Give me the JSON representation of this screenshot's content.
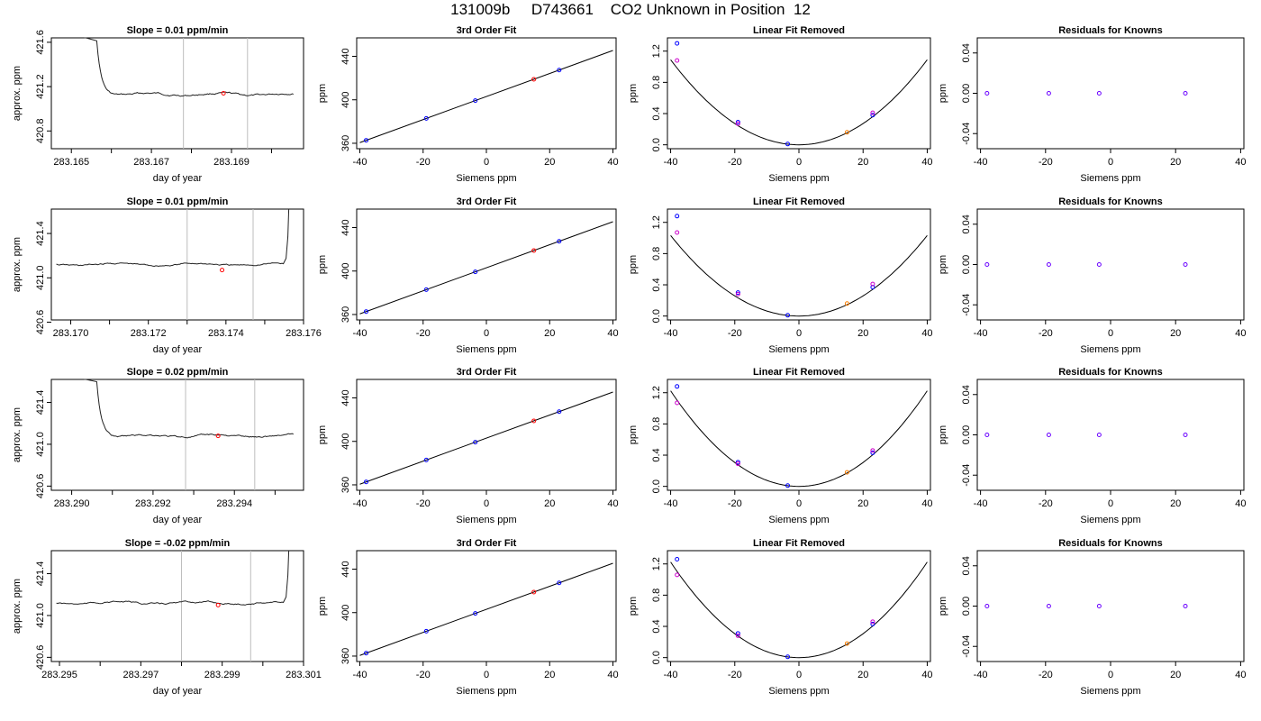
{
  "figure": {
    "title": "131009b     D743661    CO2 Unknown in Position  12"
  },
  "colors": {
    "line": "#000000",
    "trace": "#222222",
    "guide": "#bdbdbd",
    "known_blue": "#0000ff",
    "known_magenta": "#cc00cc",
    "unknown_red": "#ff0000",
    "unknown_orange": "#ff7f00",
    "residual": "#6a00ff"
  },
  "rows": [
    {
      "slope_title": "Slope =  0.01  ppm/min",
      "trace": {
        "xlabel": "day of year",
        "ylabel": "approx. ppm",
        "xlim": [
          283.1645,
          283.1708
        ],
        "ylim": [
          420.64,
          421.64
        ],
        "xticks": [
          "283.165",
          "283.167",
          "283.169"
        ],
        "xtick_values": [
          283.165,
          283.167,
          283.169
        ],
        "xminor": [
          283.166,
          283.168,
          283.17
        ],
        "yticks": [
          "420.8",
          "421.2",
          "421.6"
        ],
        "ytick_values": [
          420.8,
          421.2,
          421.6
        ],
        "guides": [
          283.1678,
          283.1694
        ],
        "marker": [
          283.1688,
          421.14
        ],
        "spike": "start",
        "level": 421.13
      },
      "quad": [
        0.000681,
        0.01,
        0.0
      ]
    },
    {
      "slope_title": "Slope =  0.01  ppm/min",
      "trace": {
        "xlabel": "day of year",
        "ylabel": "approx. ppm",
        "xlim": [
          283.1695,
          283.176
        ],
        "ylim": [
          420.62,
          421.62
        ],
        "xticks": [
          "283.170",
          "283.172",
          "283.174",
          "283.176"
        ],
        "xtick_values": [
          283.17,
          283.172,
          283.174,
          283.176
        ],
        "xminor": [
          283.171,
          283.173,
          283.175
        ],
        "yticks": [
          "420.6",
          "421.0",
          "421.4"
        ],
        "ytick_values": [
          420.6,
          421.0,
          421.4
        ],
        "guides": [
          283.173,
          283.1747
        ],
        "marker": [
          283.1739,
          421.07
        ],
        "spike": "end",
        "level": 421.12
      },
      "quad": [
        0.000645,
        0.01,
        0.0
      ]
    },
    {
      "slope_title": "Slope =  0.02  ppm/min",
      "trace": {
        "xlabel": "day of year",
        "ylabel": "approx. ppm",
        "xlim": [
          283.2895,
          283.2957
        ],
        "ylim": [
          420.56,
          421.62
        ],
        "xticks": [
          "283.290",
          "283.292",
          "283.294"
        ],
        "xtick_values": [
          283.29,
          283.292,
          283.294
        ],
        "xminor": [
          283.291,
          283.293,
          283.295
        ],
        "yticks": [
          "420.6",
          "421.0",
          "421.4"
        ],
        "ytick_values": [
          420.6,
          421.0,
          421.4
        ],
        "guides": [
          283.2928,
          283.2945
        ],
        "marker": [
          283.2936,
          421.08
        ],
        "spike": "start",
        "level": 421.08
      },
      "quad": [
        0.000765,
        0.006,
        0.0
      ]
    },
    {
      "slope_title": "Slope =  -0.02  ppm/min",
      "trace": {
        "xlabel": "day of year",
        "ylabel": "approx. ppm",
        "xlim": [
          283.2948,
          283.301
        ],
        "ylim": [
          420.56,
          421.62
        ],
        "xticks": [
          "283.295",
          "283.297",
          "283.299",
          "283.301"
        ],
        "xtick_values": [
          283.295,
          283.297,
          283.299,
          283.301
        ],
        "xminor": [
          283.296,
          283.298,
          283.3
        ],
        "yticks": [
          "420.6",
          "421.0",
          "421.4"
        ],
        "ytick_values": [
          420.6,
          421.0,
          421.4
        ],
        "guides": [
          283.298,
          283.2997
        ],
        "marker": [
          283.2989,
          421.1
        ],
        "spike": "end",
        "level": 421.12
      },
      "quad": [
        0.000765,
        0.006,
        0.0
      ]
    }
  ],
  "fit_panel": {
    "title": "3rd Order Fit",
    "xlabel": "Siemens ppm",
    "ylabel": "ppm",
    "xlim": [
      -41,
      41
    ],
    "ylim": [
      355,
      457
    ],
    "xticks": [
      "-40",
      "-20",
      "0",
      "20",
      "40"
    ],
    "xtick_values": [
      -40,
      -20,
      0,
      20,
      40
    ],
    "yticks": [
      "360",
      "400",
      "440"
    ],
    "ytick_values": [
      360,
      400,
      440
    ],
    "offset": 403
  },
  "linres_panel": {
    "title": "Linear Fit Removed",
    "xlabel": "Siemens ppm",
    "ylabel": "ppm",
    "xlim": [
      -41,
      41
    ],
    "ylim": [
      -0.05,
      1.37
    ],
    "xticks": [
      "-40",
      "-20",
      "0",
      "20",
      "40"
    ],
    "xtick_values": [
      -40,
      -20,
      0,
      20,
      40
    ],
    "yticks": [
      "0.0",
      "0.4",
      "0.8",
      "1.2"
    ],
    "ytick_values": [
      0,
      0.4,
      0.8,
      1.2
    ]
  },
  "resid_panel": {
    "title": "Residuals for Knowns",
    "xlabel": "Siemens ppm",
    "ylabel": "ppm",
    "xlim": [
      -41,
      41
    ],
    "ylim": [
      -0.055,
      0.055
    ],
    "xticks": [
      "-40",
      "-20",
      "0",
      "20",
      "40"
    ],
    "xtick_values": [
      -40,
      -20,
      0,
      20,
      40
    ],
    "yticks": [
      "-0.04",
      "0.00",
      "0.04"
    ],
    "ytick_values": [
      -0.04,
      0,
      0.04
    ]
  },
  "chart_data": [
    {
      "type": "line",
      "title": "Slope =  0.01  ppm/min",
      "xlabel": "day of year",
      "ylabel": "approx. ppm",
      "xlim": [
        283.1645,
        283.1708
      ],
      "ylim": [
        420.64,
        421.64
      ],
      "series": [
        {
          "x": [
            283.1661,
            283.167,
            283.168,
            283.169,
            283.17,
            283.1706
          ],
          "y": [
            421.12,
            421.11,
            421.12,
            421.13,
            421.13,
            421.14
          ]
        }
      ],
      "annotations": {
        "vertical_lines": [
          283.1678,
          283.1694
        ],
        "red_point": [
          283.1688,
          421.14
        ]
      }
    },
    {
      "type": "scatter",
      "title": "3rd Order Fit",
      "xlabel": "Siemens ppm",
      "ylabel": "ppm",
      "xlim": [
        -41,
        41
      ],
      "ylim": [
        355,
        457
      ],
      "series": [
        {
          "x": [
            -38,
            -19,
            -3.5,
            23
          ],
          "y": [
            363.5,
            384,
            400,
            428
          ]
        },
        {
          "x": [
            15
          ],
          "y": [
            420
          ]
        }
      ]
    },
    {
      "type": "scatter",
      "title": "Linear Fit Removed",
      "xlabel": "Siemens ppm",
      "ylabel": "ppm",
      "xlim": [
        -41,
        41
      ],
      "ylim": [
        -0.05,
        1.37
      ],
      "series": [
        {
          "x": [
            -38,
            -19,
            -3.5,
            23
          ],
          "y": [
            1.3,
            0.29,
            0.01,
            0.38
          ]
        },
        {
          "x": [
            -38,
            -19,
            23
          ],
          "y": [
            1.08,
            0.27,
            0.41
          ]
        },
        {
          "x": [
            15
          ],
          "y": [
            0.16
          ]
        }
      ]
    },
    {
      "type": "scatter",
      "title": "Residuals for Knowns",
      "xlabel": "Siemens ppm",
      "ylabel": "ppm",
      "xlim": [
        -41,
        41
      ],
      "ylim": [
        -0.055,
        0.055
      ],
      "series": [
        {
          "x": [
            -38,
            -19,
            -3.5,
            23
          ],
          "y": [
            0,
            0,
            0,
            0
          ]
        }
      ]
    },
    {
      "type": "line",
      "title": "Slope =  0.01  ppm/min",
      "xlabel": "day of year",
      "ylabel": "approx. ppm",
      "xlim": [
        283.1695,
        283.176
      ],
      "ylim": [
        420.62,
        421.62
      ],
      "series": [
        {
          "x": [
            283.1698,
            283.171,
            283.172,
            283.173,
            283.174,
            283.1755
          ],
          "y": [
            421.14,
            421.15,
            421.12,
            421.09,
            421.1,
            421.09
          ]
        }
      ],
      "annotations": {
        "vertical_lines": [
          283.173,
          283.1747
        ],
        "red_point": [
          283.1739,
          421.07
        ]
      }
    },
    {
      "type": "scatter",
      "title": "3rd Order Fit",
      "xlabel": "Siemens ppm",
      "ylabel": "ppm",
      "xlim": [
        -41,
        41
      ],
      "ylim": [
        355,
        457
      ],
      "series": [
        {
          "x": [
            -38,
            -19,
            -3.5,
            23
          ],
          "y": [
            363.5,
            384,
            400,
            428
          ]
        },
        {
          "x": [
            15
          ],
          "y": [
            420
          ]
        }
      ]
    },
    {
      "type": "scatter",
      "title": "Linear Fit Removed",
      "xlabel": "Siemens ppm",
      "ylabel": "ppm",
      "xlim": [
        -41,
        41
      ],
      "ylim": [
        -0.05,
        1.37
      ],
      "series": [
        {
          "x": [
            -38,
            -19,
            -3.5,
            23
          ],
          "y": [
            1.28,
            0.3,
            0.01,
            0.37
          ]
        },
        {
          "x": [
            -38,
            -19,
            23
          ],
          "y": [
            1.07,
            0.28,
            0.41
          ]
        },
        {
          "x": [
            15
          ],
          "y": [
            0.16
          ]
        }
      ]
    },
    {
      "type": "scatter",
      "title": "Residuals for Knowns",
      "xlabel": "Siemens ppm",
      "ylabel": "ppm",
      "xlim": [
        -41,
        41
      ],
      "ylim": [
        -0.055,
        0.055
      ],
      "series": [
        {
          "x": [
            -38,
            -19,
            -3.5,
            23
          ],
          "y": [
            0,
            0,
            0,
            0
          ]
        }
      ]
    },
    {
      "type": "line",
      "title": "Slope =  0.02  ppm/min",
      "xlabel": "day of year",
      "ylabel": "approx. ppm",
      "xlim": [
        283.2895,
        283.2957
      ],
      "ylim": [
        420.56,
        421.62
      ],
      "series": [
        {
          "x": [
            283.2911,
            283.292,
            283.293,
            283.294,
            283.295,
            283.2955
          ],
          "y": [
            421.08,
            421.07,
            421.08,
            421.09,
            421.1,
            421.1
          ]
        }
      ],
      "annotations": {
        "vertical_lines": [
          283.2928,
          283.2945
        ],
        "red_point": [
          283.2936,
          421.08
        ]
      }
    },
    {
      "type": "scatter",
      "title": "3rd Order Fit",
      "xlabel": "Siemens ppm",
      "ylabel": "ppm",
      "xlim": [
        -41,
        41
      ],
      "ylim": [
        355,
        457
      ],
      "series": [
        {
          "x": [
            -38,
            -19,
            -3.5,
            23
          ],
          "y": [
            363.5,
            384,
            400,
            428
          ]
        },
        {
          "x": [
            15
          ],
          "y": [
            420
          ]
        }
      ]
    },
    {
      "type": "scatter",
      "title": "Linear Fit Removed",
      "xlabel": "Siemens ppm",
      "ylabel": "ppm",
      "xlim": [
        -41,
        41
      ],
      "ylim": [
        -0.05,
        1.37
      ],
      "series": [
        {
          "x": [
            -38,
            -19,
            -3.5,
            23
          ],
          "y": [
            1.28,
            0.31,
            0.01,
            0.43
          ]
        },
        {
          "x": [
            -38,
            -19,
            23
          ],
          "y": [
            1.07,
            0.29,
            0.46
          ]
        },
        {
          "x": [
            15
          ],
          "y": [
            0.18
          ]
        }
      ]
    },
    {
      "type": "scatter",
      "title": "Residuals for Knowns",
      "xlabel": "Siemens ppm",
      "ylabel": "ppm",
      "xlim": [
        -41,
        41
      ],
      "ylim": [
        -0.055,
        0.055
      ],
      "series": [
        {
          "x": [
            -38,
            -19,
            -3.5,
            23
          ],
          "y": [
            0,
            0,
            0,
            0
          ]
        }
      ]
    },
    {
      "type": "line",
      "title": "Slope =  -0.02  ppm/min",
      "xlabel": "day of year",
      "ylabel": "approx. ppm",
      "xlim": [
        283.2948,
        283.301
      ],
      "ylim": [
        420.56,
        421.62
      ],
      "series": [
        {
          "x": [
            283.295,
            283.296,
            283.297,
            283.298,
            283.299,
            283.3005
          ],
          "y": [
            421.14,
            421.13,
            421.13,
            421.12,
            421.1,
            421.08
          ]
        }
      ],
      "annotations": {
        "vertical_lines": [
          283.298,
          283.2997
        ],
        "red_point": [
          283.2989,
          421.1
        ]
      }
    },
    {
      "type": "scatter",
      "title": "3rd Order Fit",
      "xlabel": "Siemens ppm",
      "ylabel": "ppm",
      "xlim": [
        -41,
        41
      ],
      "ylim": [
        355,
        457
      ],
      "series": [
        {
          "x": [
            -38,
            -19,
            -3.5,
            23
          ],
          "y": [
            363.5,
            384,
            400,
            428
          ]
        },
        {
          "x": [
            15
          ],
          "y": [
            420
          ]
        }
      ]
    },
    {
      "type": "scatter",
      "title": "Linear Fit Removed",
      "xlabel": "Siemens ppm",
      "ylabel": "ppm",
      "xlim": [
        -41,
        41
      ],
      "ylim": [
        -0.05,
        1.37
      ],
      "series": [
        {
          "x": [
            -38,
            -19,
            -3.5,
            23
          ],
          "y": [
            1.26,
            0.31,
            0.01,
            0.43
          ]
        },
        {
          "x": [
            -38,
            -19,
            23
          ],
          "y": [
            1.06,
            0.28,
            0.46
          ]
        },
        {
          "x": [
            15
          ],
          "y": [
            0.18
          ]
        }
      ]
    },
    {
      "type": "scatter",
      "title": "Residuals for Knowns",
      "xlabel": "Siemens ppm",
      "ylabel": "ppm",
      "xlim": [
        -41,
        41
      ],
      "ylim": [
        -0.055,
        0.055
      ],
      "series": [
        {
          "x": [
            -38,
            -19,
            -3.5,
            23
          ],
          "y": [
            0,
            0,
            0,
            0
          ]
        }
      ]
    }
  ]
}
